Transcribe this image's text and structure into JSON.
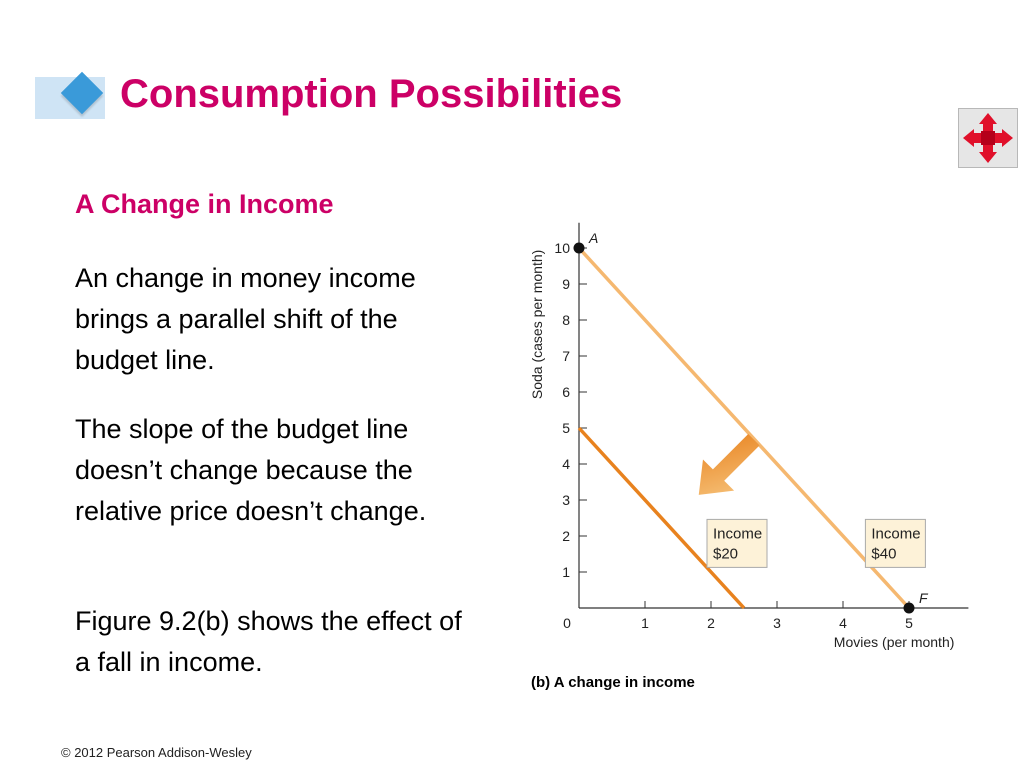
{
  "slide": {
    "title": "Consumption Possibilities",
    "subtitle": "A Change in Income",
    "paragraphs": [
      "An change in money income brings a parallel shift of the budget line.",
      "The slope of the budget line doesn’t change because the relative price doesn’t change.",
      "Figure 9.2(b) shows the effect of a fall in income."
    ],
    "footer": "© 2012 Pearson Addison-Wesley",
    "nav_icon": "move-arrows-icon"
  },
  "colors": {
    "title": "#cc0066",
    "line_light": "#f5b870",
    "line_dark": "#e8821e",
    "arrow": "#f0a040",
    "label_bg": "#fdf2d8"
  },
  "chart_data": {
    "type": "line",
    "caption": "(b) A change in income",
    "xlabel": "Movies (per month)",
    "ylabel": "Soda (cases per month)",
    "xlim": [
      0,
      5.9
    ],
    "ylim": [
      0,
      10.7
    ],
    "x_ticks": [
      0,
      1,
      2,
      3,
      4,
      5
    ],
    "y_ticks": [
      1,
      2,
      3,
      4,
      5,
      6,
      7,
      8,
      9,
      10
    ],
    "series": [
      {
        "label_lines": [
          "Income",
          "$40"
        ],
        "points": [
          [
            0,
            10
          ],
          [
            5,
            0
          ]
        ]
      },
      {
        "label_lines": [
          "Income",
          "$20"
        ],
        "points": [
          [
            0,
            5
          ],
          [
            2.5,
            0
          ]
        ]
      }
    ],
    "points": [
      {
        "name": "A",
        "x": 0,
        "y": 10
      },
      {
        "name": "F",
        "x": 5,
        "y": 0
      }
    ],
    "annotation": "arrow indicating shift of budget line inward"
  }
}
